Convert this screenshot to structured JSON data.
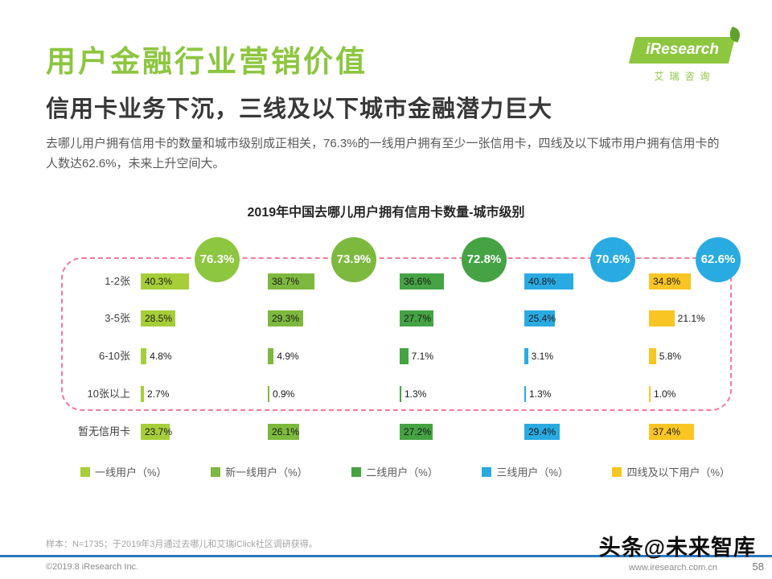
{
  "colors": {
    "accent_green": "#8dc63f",
    "subtitle_dark": "#383838",
    "dashed_pink": "#f4799a",
    "footer_line_blue": "#2878be"
  },
  "header": {
    "title": "用户金融行业营销价值",
    "subtitle": "信用卡业务下沉，三线及以下城市金融潜力巨大",
    "description": "去哪儿用户拥有信用卡的数量和城市级别成正相关，76.3%的一线用户拥有至少一张信用卡，四线及以下城市用户拥有信用卡的人数达62.6%，未来上升空间大。"
  },
  "logo": {
    "name": "iResearch",
    "caption": "艾瑞咨询"
  },
  "chart_data": {
    "type": "bar",
    "orientation": "horizontal",
    "title": "2019年中国去哪儿用户拥有信用卡数量-城市级别",
    "unit": "%",
    "legend_position": "bottom",
    "categories": [
      "1-2张",
      "3-5张",
      "6-10张",
      "10张以上",
      "暂无信用卡"
    ],
    "series": [
      {
        "name": "一线用户（%）",
        "color": "#a6ce39",
        "badge": "76.3%",
        "badge_color": "#8dc63f",
        "values": [
          40.3,
          28.5,
          4.8,
          2.7,
          23.7
        ]
      },
      {
        "name": "新一线用户（%）",
        "color": "#7db93e",
        "badge": "73.9%",
        "badge_color": "#7db93e",
        "values": [
          38.7,
          29.3,
          4.9,
          0.9,
          26.1
        ]
      },
      {
        "name": "二线用户（%）",
        "color": "#45a344",
        "badge": "72.8%",
        "badge_color": "#45a344",
        "values": [
          36.6,
          27.7,
          7.1,
          1.3,
          27.2
        ]
      },
      {
        "name": "三线用户（%）",
        "color": "#29abe2",
        "badge": "70.6%",
        "badge_color": "#29abe2",
        "values": [
          40.8,
          25.4,
          3.1,
          1.3,
          29.4
        ]
      },
      {
        "name": "四线及以下用户（%）",
        "color": "#f9c523",
        "badge": "62.6%",
        "badge_color": "#29abe2",
        "values": [
          34.8,
          21.1,
          5.8,
          1.0,
          37.4
        ]
      }
    ]
  },
  "footer": {
    "sample_note": "样本：N=1735；于2019年3月通过去哪儿和艾瑞iClick社区调研获得。",
    "copyright": "©2019.8 iResearch Inc.",
    "website": "www.iresearch.com.cn",
    "page_number": "58"
  },
  "watermark": "头条@未来智库"
}
